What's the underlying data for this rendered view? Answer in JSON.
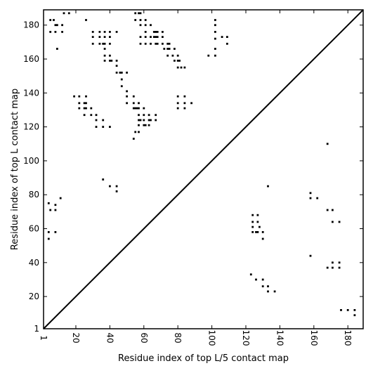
{
  "chart_data": {
    "type": "scatter",
    "xlabel": "Residue index of top L/5 contact map",
    "ylabel": "Residue index of top L contact map",
    "xlim": [
      1,
      189
    ],
    "ylim": [
      1,
      189
    ],
    "x_ticks": [
      1,
      20,
      40,
      60,
      80,
      100,
      120,
      140,
      160,
      180
    ],
    "y_ticks": [
      1,
      20,
      40,
      60,
      80,
      100,
      120,
      140,
      160,
      180
    ],
    "diagonal": true,
    "grid": false,
    "marker_color": "#000000",
    "points": [
      [
        5,
        183
      ],
      [
        7,
        183
      ],
      [
        8,
        180
      ],
      [
        9,
        180
      ],
      [
        12,
        180
      ],
      [
        5,
        176
      ],
      [
        8,
        176
      ],
      [
        12,
        176
      ],
      [
        13,
        187
      ],
      [
        16,
        187
      ],
      [
        26,
        183
      ],
      [
        9,
        166
      ],
      [
        30,
        176
      ],
      [
        34,
        176
      ],
      [
        37,
        176
      ],
      [
        40,
        176
      ],
      [
        44,
        176
      ],
      [
        30,
        173
      ],
      [
        34,
        173
      ],
      [
        37,
        173
      ],
      [
        40,
        173
      ],
      [
        30,
        169
      ],
      [
        34,
        169
      ],
      [
        36,
        169
      ],
      [
        37,
        169
      ],
      [
        40,
        169
      ],
      [
        37,
        166
      ],
      [
        37,
        162
      ],
      [
        40,
        162
      ],
      [
        37,
        159
      ],
      [
        40,
        159
      ],
      [
        41,
        159
      ],
      [
        44,
        159
      ],
      [
        44,
        156
      ],
      [
        44,
        152
      ],
      [
        46,
        152
      ],
      [
        47,
        152
      ],
      [
        50,
        152
      ],
      [
        47,
        148
      ],
      [
        47,
        144
      ],
      [
        50,
        141
      ],
      [
        50,
        138
      ],
      [
        54,
        138
      ],
      [
        50,
        134
      ],
      [
        54,
        134
      ],
      [
        57,
        134
      ],
      [
        54,
        131
      ],
      [
        55,
        131
      ],
      [
        56,
        131
      ],
      [
        57,
        131
      ],
      [
        60,
        131
      ],
      [
        57,
        127
      ],
      [
        60,
        127
      ],
      [
        63,
        127
      ],
      [
        67,
        127
      ],
      [
        57,
        124
      ],
      [
        58,
        124
      ],
      [
        60,
        124
      ],
      [
        63,
        124
      ],
      [
        64,
        124
      ],
      [
        67,
        124
      ],
      [
        57,
        121
      ],
      [
        60,
        121
      ],
      [
        61,
        121
      ],
      [
        63,
        121
      ],
      [
        55,
        117
      ],
      [
        57,
        117
      ],
      [
        54,
        113
      ],
      [
        19,
        138
      ],
      [
        22,
        138
      ],
      [
        26,
        138
      ],
      [
        22,
        134
      ],
      [
        25,
        134
      ],
      [
        26,
        134
      ],
      [
        22,
        131
      ],
      [
        25,
        131
      ],
      [
        26,
        131
      ],
      [
        29,
        131
      ],
      [
        25,
        127
      ],
      [
        29,
        127
      ],
      [
        32,
        127
      ],
      [
        32,
        124
      ],
      [
        36,
        124
      ],
      [
        32,
        120
      ],
      [
        36,
        120
      ],
      [
        40,
        120
      ],
      [
        55,
        187
      ],
      [
        57,
        187
      ],
      [
        58,
        187
      ],
      [
        55,
        183
      ],
      [
        58,
        183
      ],
      [
        61,
        183
      ],
      [
        58,
        180
      ],
      [
        61,
        180
      ],
      [
        64,
        180
      ],
      [
        61,
        176
      ],
      [
        66,
        176
      ],
      [
        67,
        176
      ],
      [
        68,
        176
      ],
      [
        71,
        176
      ],
      [
        58,
        173
      ],
      [
        61,
        173
      ],
      [
        64,
        173
      ],
      [
        66,
        173
      ],
      [
        67,
        173
      ],
      [
        68,
        173
      ],
      [
        71,
        173
      ],
      [
        58,
        169
      ],
      [
        61,
        169
      ],
      [
        64,
        169
      ],
      [
        67,
        169
      ],
      [
        68,
        169
      ],
      [
        71,
        169
      ],
      [
        74,
        169
      ],
      [
        75,
        169
      ],
      [
        72,
        166
      ],
      [
        74,
        166
      ],
      [
        75,
        166
      ],
      [
        78,
        166
      ],
      [
        74,
        162
      ],
      [
        77,
        162
      ],
      [
        80,
        162
      ],
      [
        78,
        159
      ],
      [
        80,
        159
      ],
      [
        81,
        159
      ],
      [
        80,
        155
      ],
      [
        82,
        155
      ],
      [
        84,
        155
      ],
      [
        80,
        138
      ],
      [
        84,
        138
      ],
      [
        80,
        134
      ],
      [
        84,
        134
      ],
      [
        88,
        134
      ],
      [
        80,
        131
      ],
      [
        84,
        131
      ],
      [
        98,
        162
      ],
      [
        102,
        162
      ],
      [
        102,
        166
      ],
      [
        102,
        172
      ],
      [
        102,
        176
      ],
      [
        102,
        180
      ],
      [
        102,
        183
      ],
      [
        106,
        173
      ],
      [
        109,
        173
      ],
      [
        109,
        169
      ],
      [
        168,
        110
      ],
      [
        133,
        85
      ],
      [
        36,
        89
      ],
      [
        40,
        85
      ],
      [
        44,
        85
      ],
      [
        44,
        82
      ],
      [
        4,
        75
      ],
      [
        5,
        71
      ],
      [
        8,
        71
      ],
      [
        8,
        74
      ],
      [
        11,
        78
      ],
      [
        4,
        58
      ],
      [
        8,
        58
      ],
      [
        4,
        54
      ],
      [
        158,
        81
      ],
      [
        158,
        78
      ],
      [
        162,
        78
      ],
      [
        168,
        71
      ],
      [
        171,
        71
      ],
      [
        124,
        68
      ],
      [
        127,
        68
      ],
      [
        124,
        64
      ],
      [
        127,
        64
      ],
      [
        124,
        61
      ],
      [
        128,
        61
      ],
      [
        124,
        58
      ],
      [
        126,
        58
      ],
      [
        127,
        58
      ],
      [
        130,
        58
      ],
      [
        130,
        54
      ],
      [
        171,
        64
      ],
      [
        175,
        64
      ],
      [
        158,
        44
      ],
      [
        171,
        40
      ],
      [
        175,
        40
      ],
      [
        168,
        37
      ],
      [
        171,
        37
      ],
      [
        175,
        37
      ],
      [
        123,
        33
      ],
      [
        126,
        30
      ],
      [
        130,
        30
      ],
      [
        130,
        26
      ],
      [
        133,
        26
      ],
      [
        133,
        23
      ],
      [
        137,
        23
      ],
      [
        176,
        12
      ],
      [
        180,
        12
      ],
      [
        184,
        12
      ],
      [
        184,
        9
      ]
    ]
  }
}
